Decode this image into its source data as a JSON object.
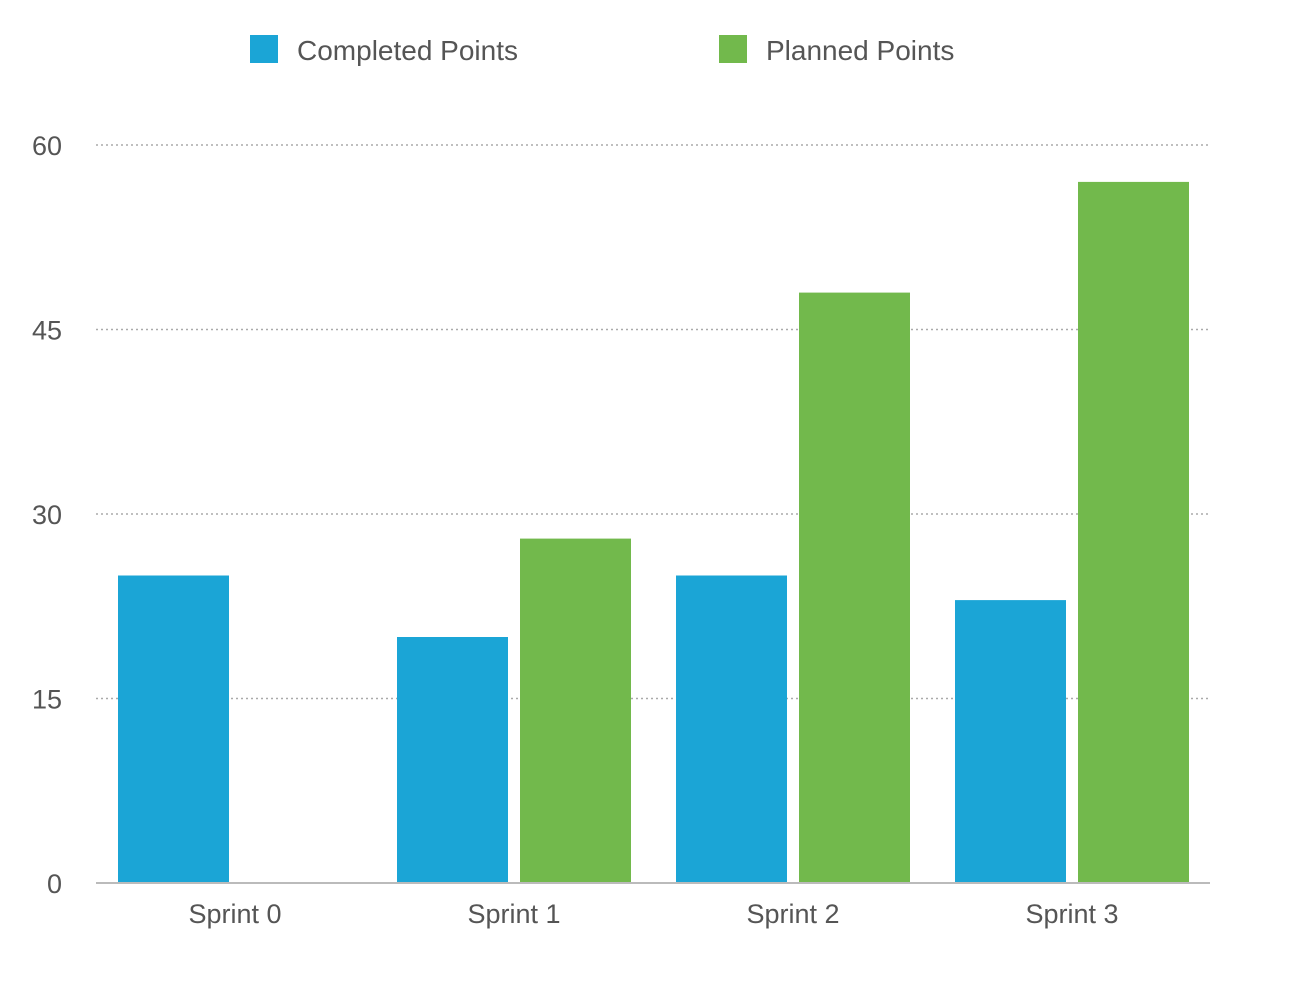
{
  "chart_data": {
    "type": "bar",
    "categories": [
      "Sprint 0",
      "Sprint 1",
      "Sprint 2",
      "Sprint 3"
    ],
    "series": [
      {
        "name": "Completed Points",
        "values": [
          25,
          20,
          25,
          23
        ]
      },
      {
        "name": "Planned Points",
        "values": [
          null,
          28,
          48,
          57
        ]
      }
    ],
    "y_ticks": [
      "0",
      "15",
      "30",
      "45",
      "60"
    ],
    "ylim": [
      0,
      60
    ],
    "grid": true,
    "legend_position": "top",
    "colors": {
      "completed": "#1ba5d6",
      "planned": "#72b94c",
      "grid": "#aaaaaa",
      "axis": "#bbbbbb"
    }
  }
}
